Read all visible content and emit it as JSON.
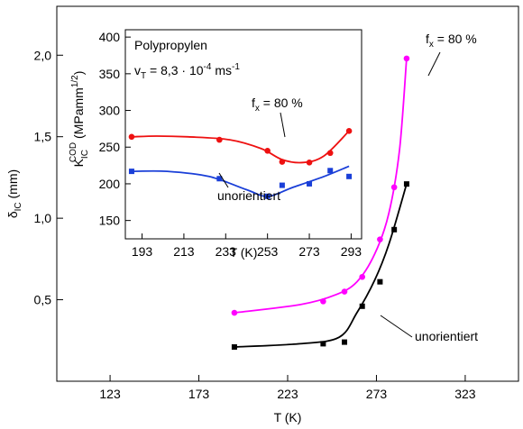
{
  "chart_data": [
    {
      "id": "main",
      "type": "line",
      "xlabel": "T (K)",
      "ylabel": "δ_IC (mm)",
      "ylabel_main": "δ",
      "ylabel_sub": "IC",
      "ylabel_unit": " (mm)",
      "xlim": [
        93,
        353
      ],
      "ylim": [
        0,
        2.3
      ],
      "xticks": [
        123,
        173,
        223,
        273,
        323
      ],
      "xtick_labels": [
        "123",
        "173",
        "223",
        "273",
        "323"
      ],
      "yticks": [
        0.5,
        1.0,
        1.5,
        2.0
      ],
      "ytick_labels": [
        "0,5",
        "1,0",
        "1,5",
        "2,0"
      ],
      "series": [
        {
          "name": "f_x = 80 %",
          "label_main": "f",
          "label_sub": "x",
          "label_rest": " = 80 %",
          "color": "#ff00ff",
          "marker": "circle",
          "points": [
            [
              193,
              0.42
            ],
            [
              243,
              0.49
            ],
            [
              255,
              0.55
            ],
            [
              265,
              0.64
            ],
            [
              275,
              0.87
            ],
            [
              283,
              1.19
            ],
            [
              290,
              1.98
            ]
          ],
          "curve": [
            [
              193,
              0.42
            ],
            [
              230,
              0.47
            ],
            [
              250,
              0.53
            ],
            [
              262,
              0.61
            ],
            [
              272,
              0.78
            ],
            [
              280,
              1.03
            ],
            [
              286,
              1.42
            ],
            [
              290,
              1.98
            ]
          ]
        },
        {
          "name": "unorientiert",
          "label_main": "unorientiert",
          "color": "#000000",
          "marker": "square",
          "points": [
            [
              193,
              0.21
            ],
            [
              243,
              0.23
            ],
            [
              255,
              0.24
            ],
            [
              265,
              0.46
            ],
            [
              275,
              0.61
            ],
            [
              283,
              0.93
            ],
            [
              290,
              1.21
            ]
          ],
          "curve": [
            [
              193,
              0.21
            ],
            [
              230,
              0.23
            ],
            [
              252,
              0.27
            ],
            [
              262,
              0.42
            ],
            [
              272,
              0.62
            ],
            [
              280,
              0.84
            ],
            [
              290,
              1.21
            ]
          ]
        }
      ]
    },
    {
      "id": "inset",
      "type": "line",
      "xlabel": "T (K)",
      "ylabel_main": "K",
      "ylabel_sub": "IC",
      "ylabel_sup": "COD",
      "ylabel_unit": " (MPamm",
      "ylabel_unit_sup": "1/2",
      "ylabel_close": ")",
      "title": "Polypropylen",
      "subtitle_main": "v",
      "subtitle_sub": "T",
      "subtitle_mid": " = 8,3 · 10",
      "subtitle_sup": "-4",
      "subtitle_unit": " ms",
      "subtitle_sup2": "-1",
      "xlim": [
        185,
        298
      ],
      "ylim": [
        125,
        410
      ],
      "xticks": [
        193,
        213,
        233,
        253,
        273,
        293
      ],
      "xtick_labels": [
        "193",
        "213",
        "233",
        "253",
        "273",
        "293"
      ],
      "yticks": [
        150,
        200,
        250,
        300,
        350,
        400
      ],
      "ytick_labels": [
        "150",
        "200",
        "250",
        "300",
        "350",
        "400"
      ],
      "series": [
        {
          "name": "f_x = 80 %",
          "label_main": "f",
          "label_sub": "x",
          "label_rest": " = 80 %",
          "color": "#ee1111",
          "marker": "circle",
          "points": [
            [
              188,
              264
            ],
            [
              230,
              260
            ],
            [
              253,
              245
            ],
            [
              260,
              230
            ],
            [
              273,
              229
            ],
            [
              283,
              242
            ],
            [
              292,
              272
            ]
          ],
          "curve": [
            [
              188,
              264
            ],
            [
              200,
              265
            ],
            [
              215,
              264
            ],
            [
              235,
              260
            ],
            [
              250,
              248
            ],
            [
              260,
              233
            ],
            [
              270,
              229
            ],
            [
              280,
              238
            ],
            [
              292,
              272
            ]
          ]
        },
        {
          "name": "unorientiert",
          "label_main": "unorientiert",
          "color": "#1a3fd8",
          "marker": "square",
          "points": [
            [
              188,
              217
            ],
            [
              230,
              207
            ],
            [
              253,
              183
            ],
            [
              260,
              198
            ],
            [
              273,
              200
            ],
            [
              283,
              218
            ],
            [
              292,
              210
            ]
          ],
          "curve": [
            [
              188,
              217
            ],
            [
              205,
              217
            ],
            [
              225,
              210
            ],
            [
              243,
              192
            ],
            [
              253,
              183
            ],
            [
              265,
              195
            ],
            [
              280,
              210
            ],
            [
              292,
              224
            ]
          ]
        }
      ]
    }
  ]
}
